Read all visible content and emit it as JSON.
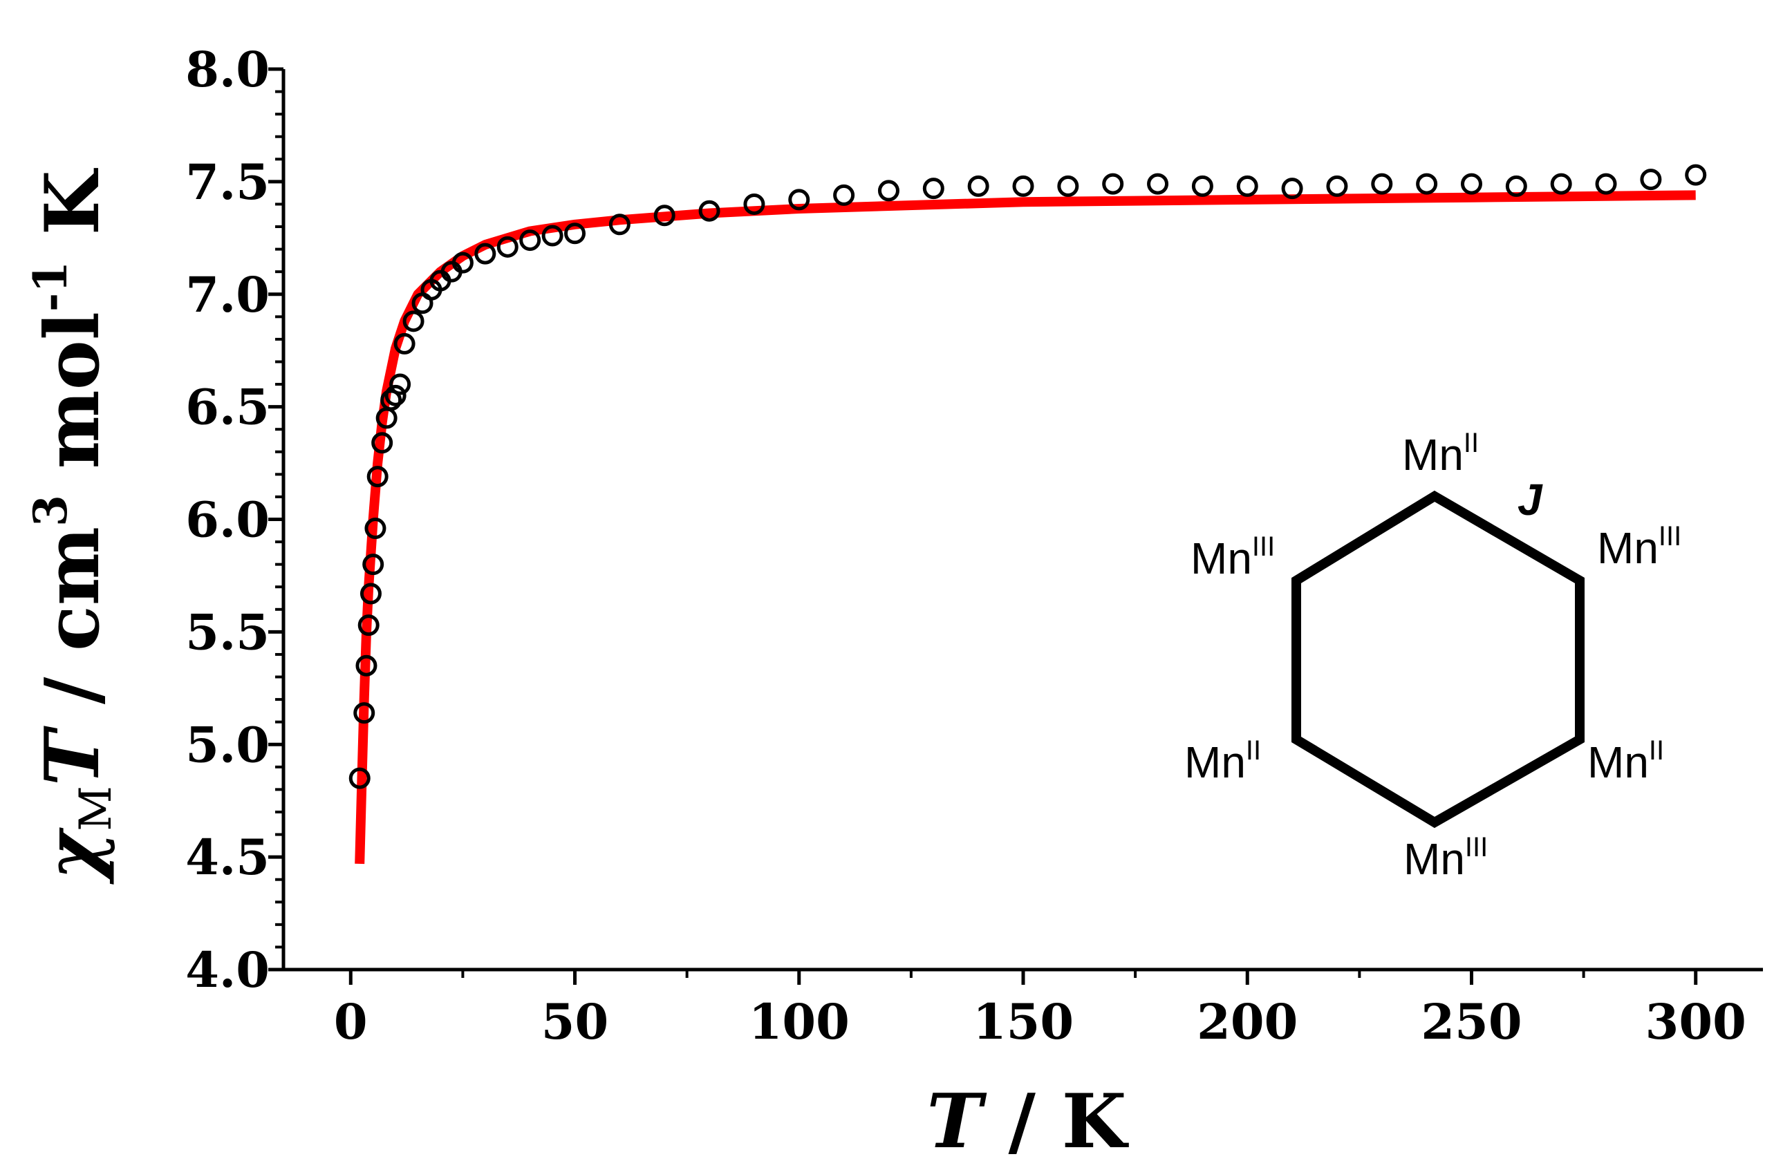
{
  "chart_data": {
    "type": "scatter",
    "title": "",
    "xlabel": {
      "var": "T",
      "sep": " / ",
      "unit": "K"
    },
    "ylabel": {
      "chi": "χ",
      "sub": "M",
      "var": "T",
      "rest1": " / cm",
      "sup1": "3",
      "rest2": " mol",
      "sup2": "-1",
      "rest3": " K"
    },
    "xlim": [
      -15,
      315
    ],
    "ylim": [
      4.0,
      8.0
    ],
    "xticks": [
      "0",
      "50",
      "100",
      "150",
      "200",
      "250",
      "300"
    ],
    "yticks": [
      "4.0",
      "4.5",
      "5.0",
      "5.5",
      "6.0",
      "6.5",
      "7.0",
      "7.5",
      "8.0"
    ],
    "grid": false,
    "series": [
      {
        "kind": "points",
        "marker": "open-circle",
        "color": "#000000",
        "x": [
          2,
          3,
          3.5,
          4,
          4.5,
          5,
          5.5,
          6,
          7,
          8,
          9,
          10,
          11,
          12,
          14,
          16,
          18,
          20,
          22.5,
          25,
          30,
          35,
          40,
          45,
          50,
          60,
          70,
          80,
          90,
          100,
          110,
          120,
          130,
          140,
          150,
          160,
          170,
          180,
          190,
          200,
          210,
          220,
          230,
          240,
          250,
          260,
          270,
          280,
          290,
          300
        ],
        "y": [
          4.85,
          5.14,
          5.35,
          5.53,
          5.67,
          5.8,
          5.96,
          6.19,
          6.34,
          6.45,
          6.53,
          6.55,
          6.6,
          6.78,
          6.88,
          6.96,
          7.02,
          7.06,
          7.1,
          7.14,
          7.18,
          7.21,
          7.24,
          7.26,
          7.27,
          7.31,
          7.35,
          7.37,
          7.4,
          7.42,
          7.44,
          7.46,
          7.47,
          7.48,
          7.48,
          7.48,
          7.49,
          7.49,
          7.48,
          7.48,
          7.47,
          7.48,
          7.49,
          7.49,
          7.49,
          7.48,
          7.49,
          7.49,
          7.51,
          7.53
        ]
      },
      {
        "kind": "line",
        "color": "#ff0000",
        "x": [
          2,
          2.5,
          3,
          3.5,
          4,
          5,
          6,
          7,
          8,
          10,
          12,
          15,
          20,
          25,
          30,
          40,
          50,
          60,
          80,
          100,
          150,
          200,
          250,
          300
        ],
        "y": [
          4.47,
          4.85,
          5.2,
          5.5,
          5.7,
          6.0,
          6.25,
          6.43,
          6.57,
          6.76,
          6.88,
          7.0,
          7.1,
          7.17,
          7.22,
          7.28,
          7.31,
          7.33,
          7.36,
          7.38,
          7.41,
          7.42,
          7.43,
          7.44
        ]
      }
    ],
    "inset": {
      "coupling": "J",
      "nodes": [
        {
          "base": "Mn",
          "sup": "II"
        },
        {
          "base": "Mn",
          "sup": "III"
        },
        {
          "base": "Mn",
          "sup": "II"
        },
        {
          "base": "Mn",
          "sup": "III"
        },
        {
          "base": "Mn",
          "sup": "II"
        },
        {
          "base": "Mn",
          "sup": "III"
        }
      ]
    }
  }
}
